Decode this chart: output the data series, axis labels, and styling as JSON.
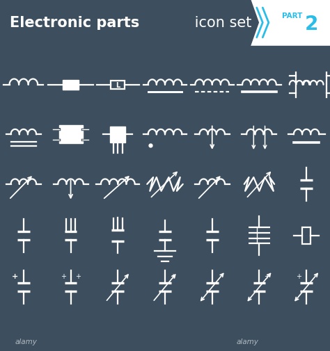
{
  "bg_color": "#3d4f5f",
  "header_bg": "#29bde8",
  "header_text_main": "Electronic parts",
  "header_text_sub": " icon set",
  "part_label": "PART",
  "part_number": "2",
  "symbol_color": "#ffffff",
  "line_width": 1.6,
  "grid_cols": 7,
  "grid_rows": 5
}
